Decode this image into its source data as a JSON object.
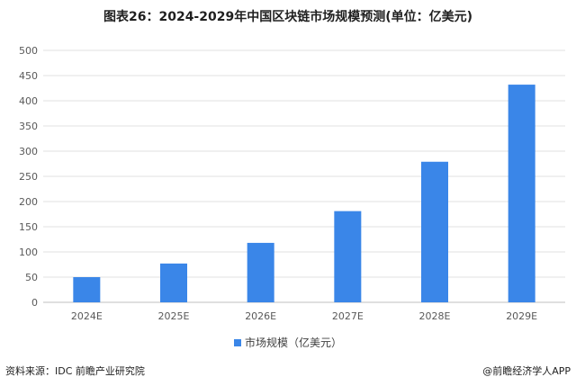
{
  "header": {
    "title": "图表26：2024-2029年中国区块链市场规模预测(单位：亿美元)"
  },
  "chart_data": {
    "type": "bar",
    "categories": [
      "2024E",
      "2025E",
      "2026E",
      "2027E",
      "2028E",
      "2029E"
    ],
    "series": [
      {
        "name": "市场规模（亿美元）",
        "values": [
          50,
          77,
          118,
          181,
          279,
          432
        ]
      }
    ],
    "y_ticks": [
      "0",
      "50",
      "100",
      "150",
      "200",
      "250",
      "300",
      "350",
      "400",
      "450",
      "500"
    ],
    "ylim": [
      0,
      500
    ],
    "grid": true,
    "legend_position": "bottom",
    "bar_color": "#3a86e8"
  },
  "footer": {
    "source": "资料来源：IDC 前瞻产业研究院",
    "brand": "@前瞻经济学人APP"
  }
}
